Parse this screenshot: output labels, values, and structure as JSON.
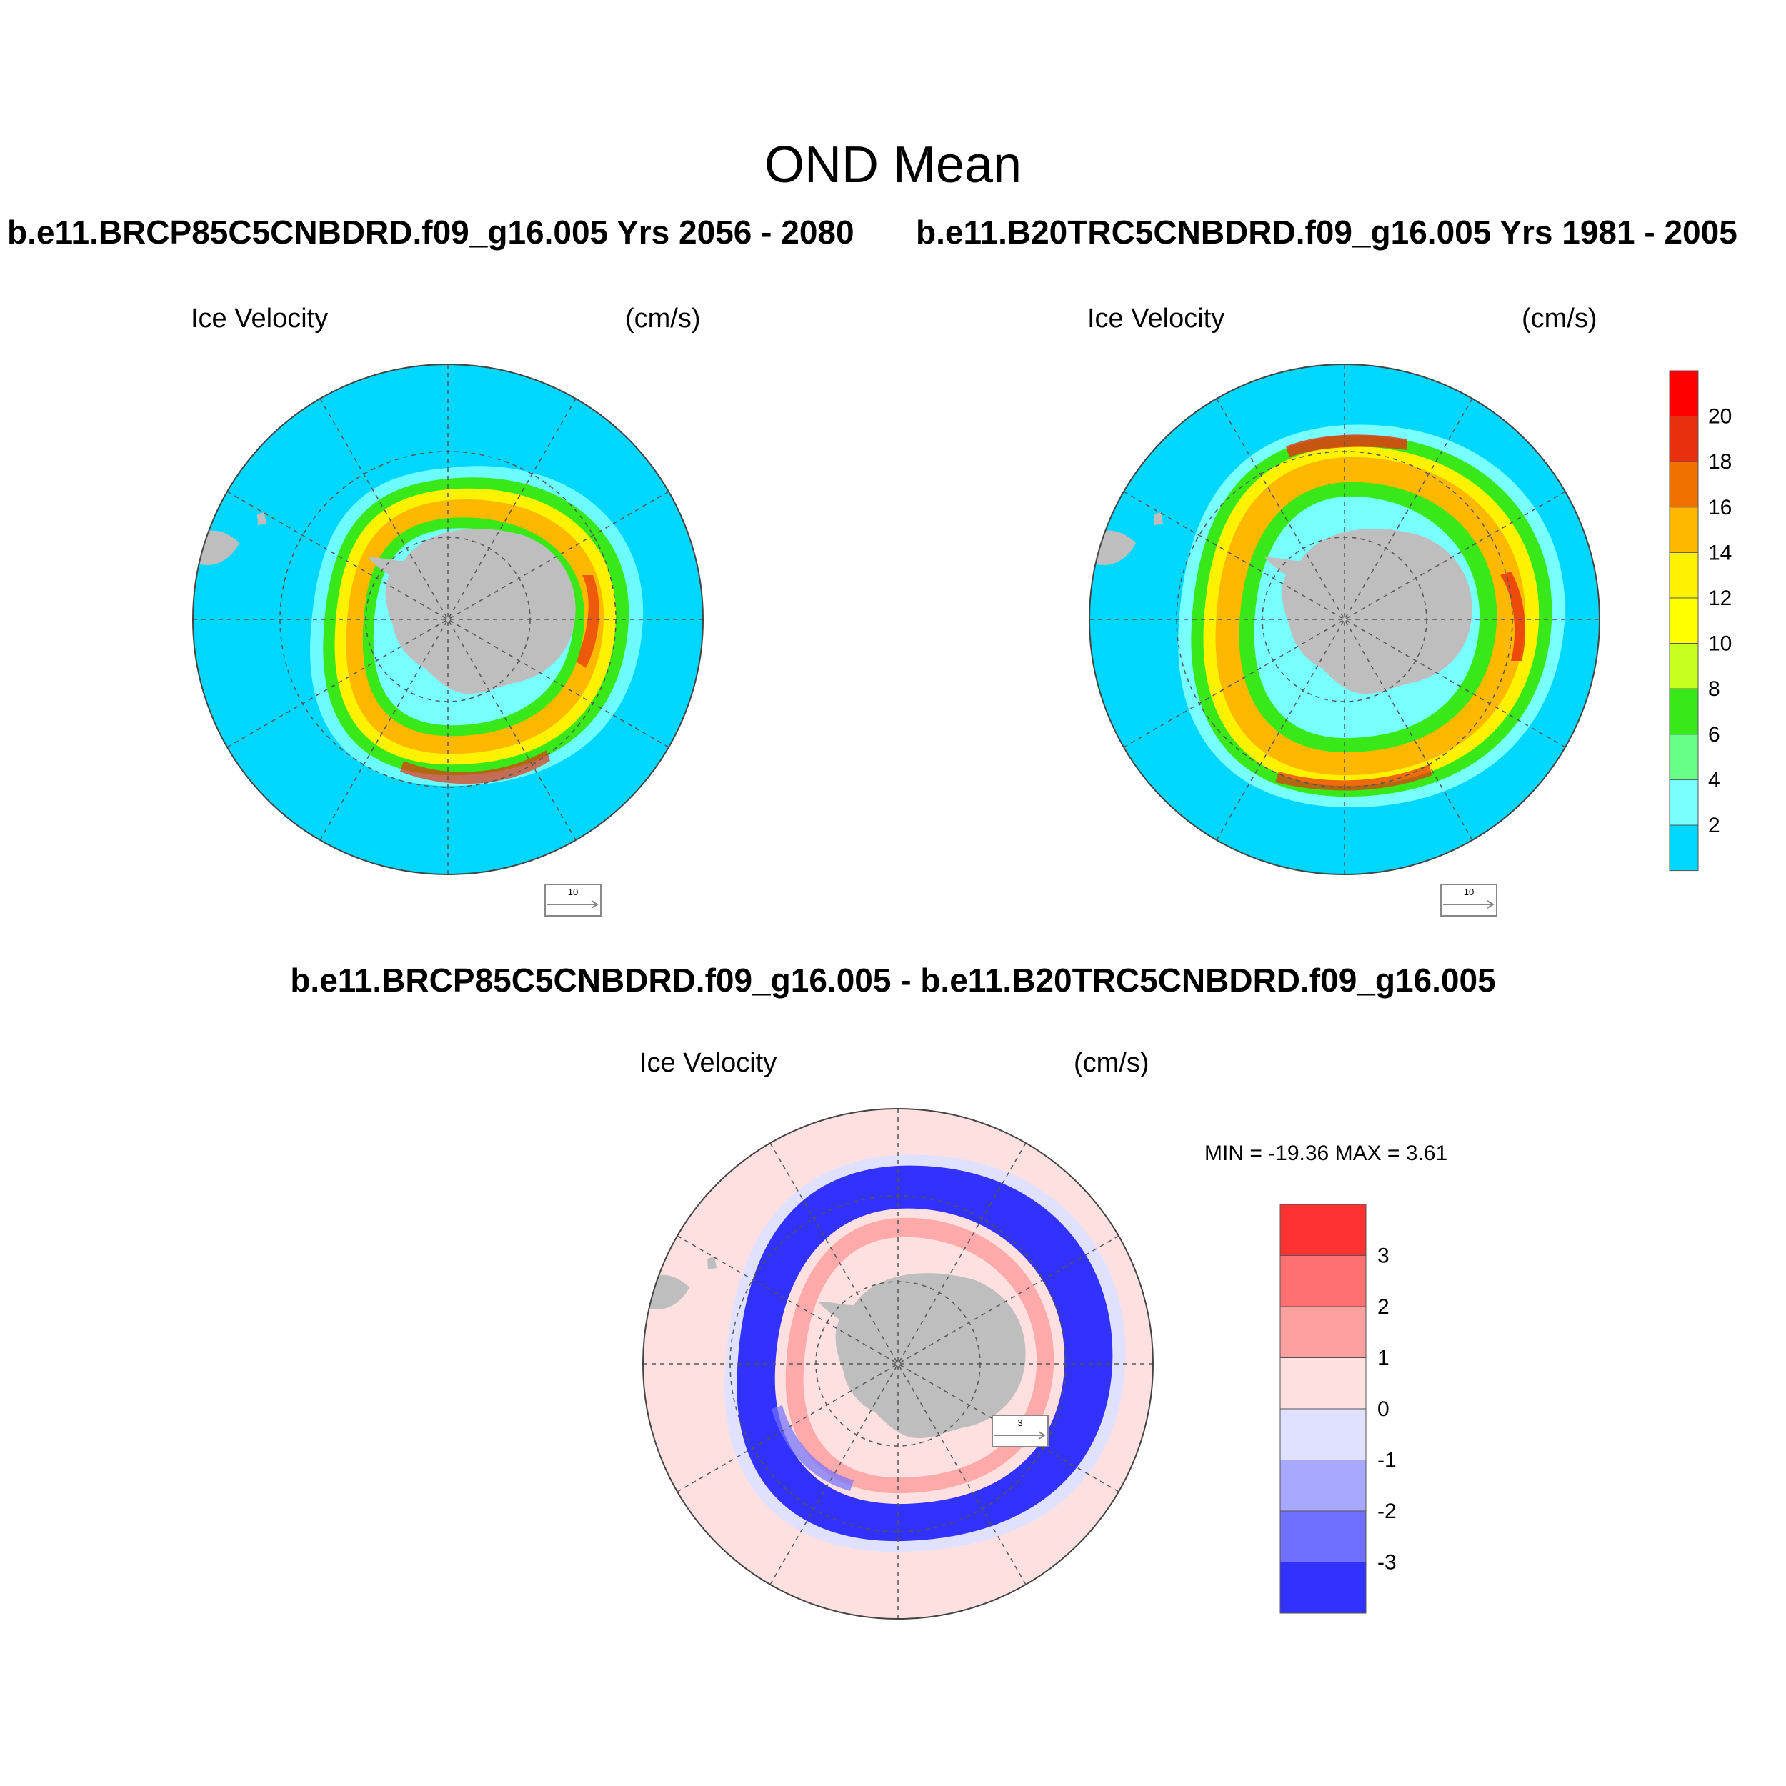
{
  "title": "OND Mean",
  "panels": [
    {
      "case_title": "b.e11.BRCP85C5CNBDRD.f09_g16.005  Yrs 2056 - 2080",
      "variable": "Ice Velocity",
      "units": "(cm/s)",
      "ref_vector_label": "10"
    },
    {
      "case_title": "b.e11.B20TRC5CNBDRD.f09_g16.005  Yrs 1981 - 2005",
      "variable": "Ice Velocity",
      "units": "(cm/s)",
      "ref_vector_label": "10"
    },
    {
      "case_title": "b.e11.BRCP85C5CNBDRD.f09_g16.005 - b.e11.B20TRC5CNBDRD.f09_g16.005",
      "variable": "Ice Velocity",
      "units": "(cm/s)",
      "ref_vector_label": "3",
      "minmax": "MIN = -19.36 MAX =   3.61"
    }
  ],
  "colorbar_abs": {
    "labels": [
      "20",
      "18",
      "16",
      "14",
      "12",
      "10",
      "8",
      "6",
      "4",
      "2"
    ],
    "colors": [
      "#ff0000",
      "#e8300f",
      "#f07000",
      "#ffb800",
      "#fff200",
      "#ffff00",
      "#c8ff20",
      "#38e818",
      "#68ff88",
      "#78ffff",
      "#00d7ff"
    ]
  },
  "colorbar_diff": {
    "labels": [
      "3",
      "2",
      "1",
      "0",
      "-1",
      "-2",
      "-3"
    ],
    "colors": [
      "#ff3232",
      "#ff7070",
      "#ffa0a0",
      "#ffe0e0",
      "#e0e0ff",
      "#a8a8ff",
      "#7070ff",
      "#3232ff"
    ]
  },
  "colors": {
    "ocean_abs": "#00d7ff",
    "ocean_diff": "#ffe0e0",
    "land": "#bebebe"
  }
}
